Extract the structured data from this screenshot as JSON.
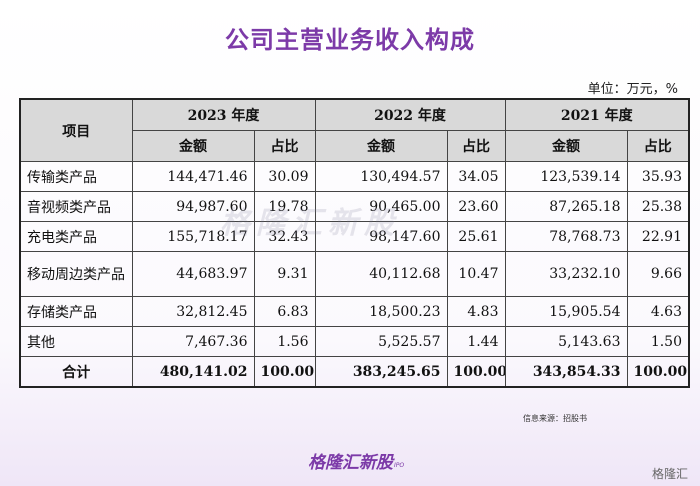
{
  "title": "公司主营业务收入构成",
  "unit": "单位：万元，%",
  "table": {
    "item_header": "项目",
    "years": [
      "2023 年度",
      "2022 年度",
      "2021 年度"
    ],
    "sub_headers": {
      "amount": "金额",
      "ratio": "占比"
    },
    "rows": [
      {
        "name": "传输类产品",
        "cells": [
          "144,471.46",
          "30.09",
          "130,494.57",
          "34.05",
          "123,539.14",
          "35.93"
        ]
      },
      {
        "name": "音视频类产品",
        "cells": [
          "94,987.60",
          "19.78",
          "90,465.00",
          "23.60",
          "87,265.18",
          "25.38"
        ]
      },
      {
        "name": "充电类产品",
        "cells": [
          "155,718.17",
          "32.43",
          "98,147.60",
          "25.61",
          "78,768.73",
          "22.91"
        ]
      },
      {
        "name": "移动周边类产品",
        "cells": [
          "44,683.97",
          "9.31",
          "40,112.68",
          "10.47",
          "33,232.10",
          "9.66"
        ]
      },
      {
        "name": "存储类产品",
        "cells": [
          "32,812.45",
          "6.83",
          "18,500.23",
          "4.83",
          "15,905.54",
          "4.63"
        ]
      },
      {
        "name": "其他",
        "cells": [
          "7,467.36",
          "1.56",
          "5,525.57",
          "1.44",
          "5,143.63",
          "1.50"
        ]
      }
    ],
    "total": {
      "name": "合计",
      "cells": [
        "480,141.02",
        "100.00",
        "383,245.65",
        "100.00",
        "343,854.33",
        "100.00"
      ]
    }
  },
  "watermark": "格隆汇新股",
  "source": "信息来源：招股书",
  "brand": "格隆汇新股",
  "brand_sub": "IPO",
  "corner_logo": "格隆汇"
}
